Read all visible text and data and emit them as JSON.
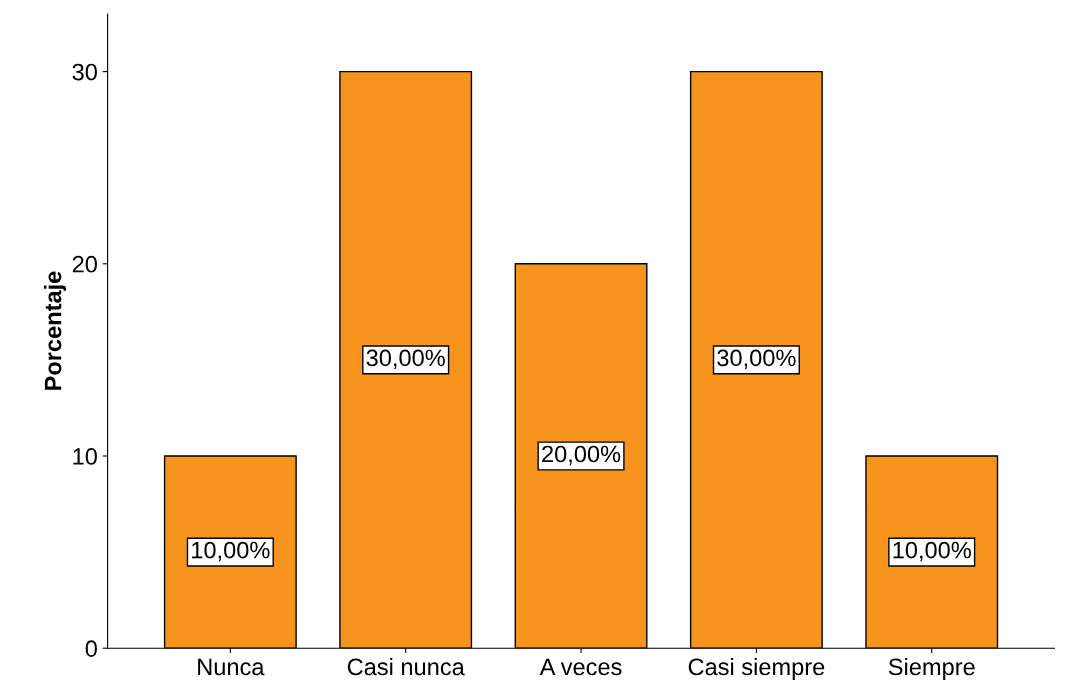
{
  "chart_data": {
    "type": "bar",
    "ylabel": "Porcentaje",
    "categories": [
      "Nunca",
      "Casi nunca",
      "A veces",
      "Casi siempre",
      "Siempre"
    ],
    "values": [
      10,
      30,
      20,
      30,
      10
    ],
    "value_labels": [
      "10,00%",
      "30,00%",
      "20,00%",
      "30,00%",
      "10,00%"
    ],
    "color": "#f7941d",
    "ylim": [
      0,
      33
    ],
    "yticks": [
      0,
      10,
      20,
      30
    ],
    "grid": false
  }
}
